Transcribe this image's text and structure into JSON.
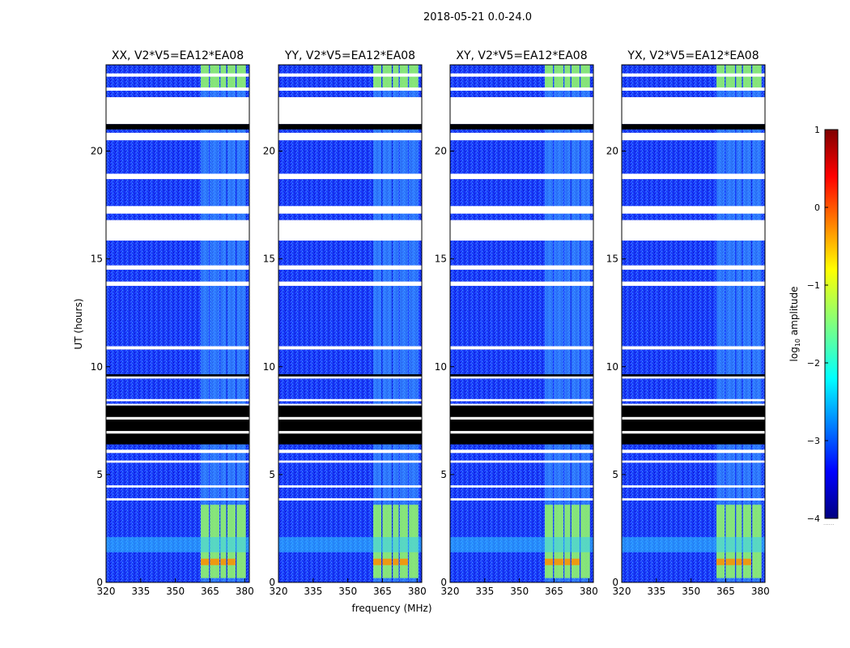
{
  "figure": {
    "suptitle": "2018-05-21 0.0-24.0",
    "xlabel": "frequency (MHz)",
    "ylabel": "UT (hours)",
    "colorbar_label_main": "log",
    "colorbar_label_sub": "10",
    "colorbar_label_rest": " amplitude",
    "colorbar_ticks": [
      "1",
      "0",
      "−1",
      "−2",
      "−3",
      "−4"
    ],
    "colorbar_range": [
      -4,
      1
    ],
    "colorbar_extra": "......"
  },
  "chart_data": {
    "type": "heatmap",
    "panels": [
      {
        "title": "XX, V2*V5=EA12*EA08"
      },
      {
        "title": "YY, V2*V5=EA12*EA08"
      },
      {
        "title": "XY, V2*V5=EA12*EA08"
      },
      {
        "title": "YX, V2*V5=EA12*EA08"
      }
    ],
    "x_range": [
      320,
      382
    ],
    "x_ticks": [
      320,
      335,
      350,
      365,
      380
    ],
    "y_range": [
      0,
      24
    ],
    "y_ticks": [
      0,
      5,
      10,
      15,
      20
    ],
    "flagged_white_ut": [
      [
        21.25,
        22.5
      ],
      [
        20.5,
        20.85
      ],
      [
        18.7,
        18.95
      ],
      [
        17.1,
        17.45
      ],
      [
        15.85,
        16.8
      ],
      [
        14.5,
        14.7
      ],
      [
        13.75,
        13.95
      ],
      [
        10.8,
        10.95
      ],
      [
        9.45,
        9.6
      ],
      [
        8.4,
        8.5
      ],
      [
        8.2,
        8.28
      ],
      [
        6.0,
        6.15
      ],
      [
        5.55,
        5.65
      ],
      [
        4.4,
        4.5
      ],
      [
        3.8,
        3.9
      ],
      [
        22.8,
        22.95
      ],
      [
        23.45,
        23.6
      ]
    ],
    "flagged_black_ut": [
      [
        6.4,
        8.2
      ],
      [
        21.0,
        21.25
      ],
      [
        9.55,
        9.65
      ]
    ],
    "rfi_bands_mhz": [
      [
        361,
        364.5
      ],
      [
        365,
        369
      ],
      [
        369.5,
        372
      ],
      [
        372.5,
        376
      ],
      [
        376.5,
        380.5
      ]
    ],
    "strong_rfi_ut": [
      [
        0.2,
        3.6
      ],
      [
        22.9,
        24.0
      ]
    ],
    "colormap": "jet"
  }
}
